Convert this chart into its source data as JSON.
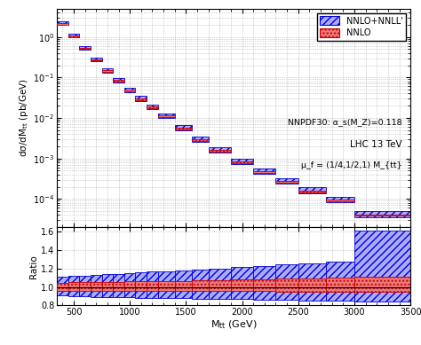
{
  "bin_edges": [
    350,
    450,
    550,
    650,
    750,
    850,
    950,
    1050,
    1150,
    1250,
    1400,
    1550,
    1700,
    1900,
    2100,
    2300,
    2500,
    2750,
    3000,
    3500
  ],
  "nnlo_low": [
    2.0,
    1.0,
    0.5,
    0.26,
    0.14,
    0.079,
    0.046,
    0.028,
    0.017,
    0.0105,
    0.0053,
    0.0027,
    0.00148,
    0.00078,
    0.00044,
    0.000253,
    0.000148,
    8.8e-05,
    3.8e-05
  ],
  "nnlo_high": [
    2.2,
    1.1,
    0.55,
    0.285,
    0.152,
    0.086,
    0.051,
    0.031,
    0.019,
    0.0117,
    0.0058,
    0.00295,
    0.00163,
    0.00086,
    0.000485,
    0.000278,
    0.000163,
    9.7e-05,
    4.2e-05
  ],
  "nnll_low": [
    1.95,
    0.97,
    0.48,
    0.25,
    0.133,
    0.075,
    0.044,
    0.0265,
    0.0163,
    0.00995,
    0.00497,
    0.00252,
    0.001385,
    0.00073,
    0.00041,
    0.000235,
    0.000137,
    8.1e-05,
    3.5e-05
  ],
  "nnll_high": [
    2.4,
    1.2,
    0.6,
    0.315,
    0.17,
    0.097,
    0.0566,
    0.0345,
    0.0213,
    0.01315,
    0.0066,
    0.00338,
    0.00187,
    0.000995,
    0.000562,
    0.000327,
    0.000191,
    0.000113,
    4.9e-05
  ],
  "ratio_nnlo_low": [
    0.955,
    0.96,
    0.96,
    0.96,
    0.96,
    0.96,
    0.96,
    0.958,
    0.958,
    0.957,
    0.956,
    0.956,
    0.955,
    0.954,
    0.953,
    0.952,
    0.952,
    0.951,
    0.95
  ],
  "ratio_nnlo_high": [
    1.048,
    1.05,
    1.052,
    1.053,
    1.055,
    1.057,
    1.059,
    1.061,
    1.063,
    1.065,
    1.068,
    1.072,
    1.076,
    1.081,
    1.086,
    1.091,
    1.096,
    1.101,
    1.108
  ],
  "ratio_nnll_low": [
    0.905,
    0.9,
    0.895,
    0.893,
    0.89,
    0.888,
    0.886,
    0.884,
    0.882,
    0.879,
    0.876,
    0.873,
    0.87,
    0.866,
    0.862,
    0.857,
    0.853,
    0.848,
    0.843
  ],
  "ratio_nnll_high": [
    1.115,
    1.12,
    1.125,
    1.13,
    1.138,
    1.145,
    1.152,
    1.158,
    1.165,
    1.172,
    1.182,
    1.192,
    1.202,
    1.215,
    1.228,
    1.242,
    1.258,
    1.278,
    1.61
  ],
  "nnlo_face": "#e87878",
  "nnlo_edge": "#cc0000",
  "nnll_face": "#aaaaff",
  "nnll_edge": "#0000cc",
  "ylabel_main": "dσ/dM_{tt} (pb/GeV)",
  "ylabel_ratio": "Ratio",
  "xlabel": "M_{tt} (GeV)",
  "xlim": [
    350,
    3500
  ],
  "ylim_main": [
    2e-05,
    5.0
  ],
  "ylim_ratio": [
    0.8,
    1.65
  ],
  "legend_label_nnll": "NNLO+NNLL'",
  "legend_label_nnlo": "NNLO",
  "ann1": "NNPDF30: α_s(M_Z)=0.118",
  "ann2": "LHC 13 TeV",
  "ann3": "μ_f = (1/4,1/2,1) M_{tt}",
  "ratio_yticks": [
    0.8,
    1.0,
    1.2,
    1.4,
    1.6
  ],
  "xticks": [
    500,
    1000,
    1500,
    2000,
    2500,
    3000,
    3500
  ]
}
